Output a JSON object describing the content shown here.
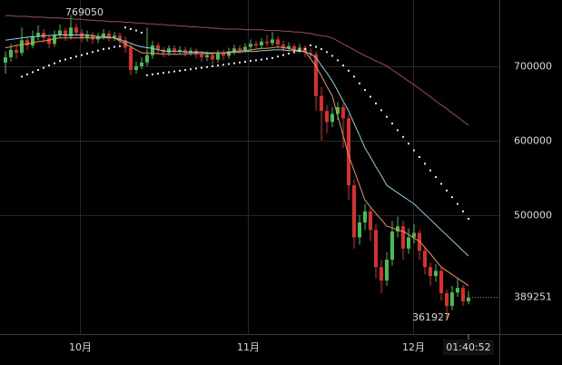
{
  "chart_data": {
    "type": "candlestick",
    "categories": [
      null,
      null,
      null,
      null,
      null,
      null,
      null,
      null,
      null,
      null,
      null,
      null,
      null,
      null,
      null,
      null,
      null,
      null,
      null,
      null,
      null,
      null,
      null,
      null,
      null,
      null,
      null,
      null,
      null,
      null,
      null,
      null,
      null,
      null,
      null,
      null,
      null,
      null,
      null,
      null,
      null,
      null,
      null,
      null,
      null,
      null,
      null,
      null,
      null,
      null,
      null,
      null,
      null,
      null,
      null,
      null,
      null,
      null,
      null,
      null,
      null,
      null,
      null,
      null,
      null,
      null,
      null,
      null,
      null,
      null,
      null,
      null,
      null,
      null,
      null,
      null,
      null,
      null,
      null,
      null,
      null,
      null,
      null,
      null,
      null,
      null
    ],
    "open": [
      705000,
      712000,
      722000,
      718000,
      735000,
      728000,
      740000,
      745000,
      738000,
      730000,
      742000,
      748000,
      740000,
      752000,
      745000,
      738000,
      742000,
      736000,
      740000,
      744000,
      738000,
      741000,
      735000,
      725000,
      695000,
      700000,
      705000,
      715000,
      728000,
      722000,
      718000,
      724000,
      720000,
      722000,
      718000,
      721000,
      716000,
      712000,
      715000,
      709000,
      718000,
      714000,
      720000,
      724000,
      722000,
      726000,
      730000,
      728000,
      733000,
      731000,
      736000,
      729000,
      724000,
      727000,
      722000,
      725000,
      718000,
      716000,
      660000,
      640000,
      625000,
      636000,
      645000,
      630000,
      540000,
      470000,
      490000,
      505000,
      480000,
      430000,
      412000,
      440000,
      478000,
      485000,
      455000,
      470000,
      476000,
      452000,
      430000,
      418000,
      425000,
      395000,
      378000,
      396000,
      402000,
      384000
    ],
    "high": [
      720000,
      730000,
      728000,
      752000,
      740000,
      748000,
      755000,
      750000,
      742000,
      748000,
      756000,
      752000,
      769050,
      758000,
      750000,
      748000,
      746000,
      745000,
      750000,
      748000,
      746000,
      745000,
      740000,
      730000,
      706000,
      712000,
      752000,
      734000,
      732000,
      726000,
      728000,
      728000,
      727000,
      726000,
      725000,
      724000,
      720000,
      720000,
      718000,
      722000,
      722000,
      725000,
      729000,
      728000,
      731000,
      736000,
      734000,
      738000,
      742000,
      746000,
      740000,
      734000,
      732000,
      730000,
      730000,
      728000,
      724000,
      720000,
      672000,
      648000,
      645000,
      652000,
      650000,
      636000,
      548000,
      500000,
      515000,
      510000,
      488000,
      440000,
      450000,
      492000,
      498000,
      492000,
      482000,
      488000,
      480000,
      458000,
      436000,
      434000,
      430000,
      400000,
      405000,
      416000,
      406000,
      398000
    ],
    "low": [
      690000,
      706000,
      710000,
      714000,
      722000,
      724000,
      735000,
      732000,
      724000,
      726000,
      738000,
      734000,
      736000,
      740000,
      732000,
      733000,
      730000,
      731000,
      736000,
      733000,
      734000,
      729000,
      718000,
      688000,
      690000,
      696000,
      700000,
      710000,
      716000,
      712000,
      714000,
      715000,
      716000,
      713000,
      714000,
      710000,
      706000,
      707000,
      702000,
      705000,
      708000,
      710000,
      715000,
      717000,
      718000,
      721000,
      723000,
      724000,
      726000,
      727000,
      724000,
      719000,
      720000,
      717000,
      718000,
      712000,
      710000,
      640000,
      600000,
      610000,
      618000,
      628000,
      590000,
      520000,
      455000,
      460000,
      480000,
      465000,
      415000,
      395000,
      405000,
      432000,
      470000,
      440000,
      448000,
      462000,
      440000,
      420000,
      405000,
      410000,
      385000,
      361927,
      372000,
      390000,
      378000,
      380000
    ],
    "close": [
      712000,
      722000,
      718000,
      735000,
      728000,
      740000,
      745000,
      738000,
      730000,
      742000,
      748000,
      740000,
      752000,
      745000,
      738000,
      742000,
      736000,
      740000,
      744000,
      738000,
      741000,
      735000,
      725000,
      695000,
      700000,
      705000,
      715000,
      728000,
      722000,
      718000,
      724000,
      720000,
      722000,
      718000,
      721000,
      716000,
      712000,
      715000,
      709000,
      718000,
      714000,
      720000,
      724000,
      722000,
      726000,
      730000,
      728000,
      733000,
      731000,
      736000,
      729000,
      724000,
      727000,
      722000,
      725000,
      718000,
      716000,
      660000,
      640000,
      625000,
      636000,
      645000,
      630000,
      540000,
      470000,
      490000,
      505000,
      480000,
      430000,
      412000,
      440000,
      478000,
      485000,
      455000,
      470000,
      476000,
      452000,
      430000,
      418000,
      425000,
      395000,
      378000,
      396000,
      402000,
      384000,
      389251
    ],
    "up_color": "#45c04f",
    "down_color": "#d8302c",
    "series": [
      {
        "color": "#9a4a66",
        "style": "line",
        "values": [
          768000,
          768000,
          767000,
          767000,
          767000,
          766000,
          766000,
          766000,
          765000,
          765000,
          765000,
          764000,
          764000,
          763000,
          763000,
          762000,
          762000,
          761000,
          761000,
          760000,
          760000,
          760000,
          759000,
          759000,
          758000,
          758000,
          757000,
          757000,
          756000,
          756000,
          755000,
          755000,
          754000,
          754000,
          753000,
          753000,
          752000,
          752000,
          751000,
          751000,
          750000,
          750000,
          750000,
          750000,
          749000,
          749000,
          749000,
          749000,
          748000,
          748000,
          748000,
          747000,
          747000,
          746000,
          746000,
          745000,
          744000,
          742000,
          741000,
          740000,
          738000,
          734000,
          730000,
          726000,
          722000,
          718000,
          714000,
          711000,
          707000,
          704000,
          700000,
          695000,
          690000,
          685000,
          680000,
          675000,
          670000,
          664000,
          659000,
          653000,
          648000,
          643000,
          637000,
          632000,
          626000,
          621000
        ]
      },
      {
        "color": "#7fd3dc",
        "style": "line",
        "values": [
          735000,
          736000,
          737000,
          738000,
          739000,
          740000,
          740000,
          741000,
          741000,
          742000,
          742000,
          742000,
          742000,
          742000,
          742000,
          742000,
          741000,
          740000,
          740000,
          739000,
          738000,
          736000,
          733000,
          731000,
          728000,
          726000,
          725000,
          724000,
          722000,
          721000,
          720000,
          720000,
          720000,
          719000,
          719000,
          719000,
          719000,
          718000,
          718000,
          718000,
          718000,
          718000,
          719000,
          719000,
          720000,
          720000,
          720000,
          721000,
          721000,
          722000,
          722000,
          722000,
          721000,
          721000,
          720000,
          720000,
          716000,
          712000,
          701000,
          691000,
          680000,
          667000,
          653000,
          640000,
          623000,
          607000,
          590000,
          578000,
          565000,
          553000,
          540000,
          535000,
          530000,
          525000,
          520000,
          515000,
          508000,
          501000,
          494000,
          487000,
          480000,
          473000,
          466000,
          459000,
          452000,
          445000
        ]
      },
      {
        "color": "#e8955a",
        "style": "line",
        "values": [
          725000,
          726000,
          728000,
          729000,
          730000,
          732000,
          733000,
          734000,
          735000,
          737000,
          738000,
          738000,
          738000,
          738000,
          738000,
          738000,
          738000,
          738000,
          738000,
          738000,
          738000,
          734000,
          730000,
          726000,
          722000,
          718000,
          718000,
          717000,
          717000,
          716000,
          716000,
          716000,
          716000,
          716000,
          717000,
          717000,
          717000,
          717000,
          717000,
          718000,
          718000,
          719000,
          720000,
          721000,
          721000,
          722000,
          723000,
          724000,
          724000,
          725000,
          726000,
          725000,
          724000,
          722000,
          721000,
          720000,
          710000,
          700000,
          687000,
          673000,
          660000,
          633000,
          607000,
          580000,
          560000,
          540000,
          520000,
          511000,
          502000,
          494000,
          485000,
          483000,
          480000,
          478000,
          474000,
          469000,
          465000,
          456000,
          448000,
          439000,
          430000,
          425000,
          420000,
          415000,
          410000,
          405000
        ]
      },
      {
        "color": "#e6e6e6",
        "style": "dots",
        "values": [
          null,
          null,
          null,
          686000,
          689000,
          692000,
          695000,
          698000,
          701000,
          704000,
          707000,
          709000,
          711000,
          713000,
          715000,
          717000,
          719000,
          721000,
          723000,
          724000,
          726000,
          727000,
          752000,
          750000,
          748000,
          745000,
          688000,
          689000,
          690000,
          691000,
          692000,
          693000,
          694000,
          695000,
          696000,
          697000,
          698000,
          699000,
          700000,
          701000,
          702000,
          703000,
          704000,
          705000,
          706000,
          707000,
          708000,
          709000,
          710000,
          711000,
          713000,
          715000,
          717000,
          719000,
          721000,
          723000,
          728000,
          726000,
          723000,
          719000,
          714000,
          708000,
          701000,
          694000,
          686000,
          677000,
          668000,
          659000,
          650000,
          641000,
          632000,
          623000,
          614000,
          605000,
          596000,
          587000,
          578000,
          569000,
          560000,
          551000,
          542000,
          533000,
          524000,
          515000,
          505000,
          495000
        ]
      }
    ],
    "ylim": [
      340000,
      789000
    ],
    "yticks": [
      500000,
      600000,
      700000
    ],
    "xlim": [
      -1,
      90.67
    ],
    "xticks": [
      {
        "value": 13.67,
        "label": "10月"
      },
      {
        "value": 44.5,
        "label": "11月"
      },
      {
        "value": 74.83,
        "label": "12月"
      }
    ],
    "cursor_label": "01:40:52",
    "grid": true
  }
}
